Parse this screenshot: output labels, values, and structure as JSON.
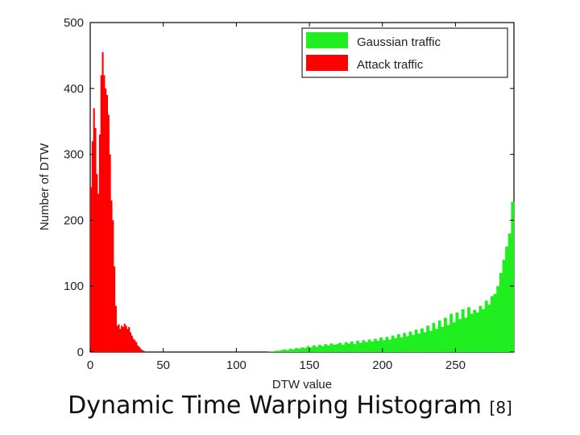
{
  "caption": {
    "title": "Dynamic Time Warping Histogram",
    "ref": "[8]"
  },
  "chart_data": {
    "type": "bar",
    "title": "",
    "xlabel": "DTW value",
    "ylabel": "Number of DTW",
    "xlim": [
      0,
      290
    ],
    "ylim": [
      0,
      500
    ],
    "xticks": [
      0,
      50,
      100,
      150,
      200,
      250
    ],
    "yticks": [
      0,
      100,
      200,
      300,
      400,
      500
    ],
    "legend": {
      "placement": "top-right",
      "entries": [
        "Gaussian traffic",
        "Attack traffic"
      ]
    },
    "series": [
      {
        "name": "Gaussian traffic",
        "color": "#1fef1f",
        "bin_width": 2,
        "x": [
          120,
          122,
          124,
          126,
          128,
          130,
          132,
          134,
          136,
          138,
          140,
          142,
          144,
          146,
          148,
          150,
          152,
          154,
          156,
          158,
          160,
          162,
          164,
          166,
          168,
          170,
          172,
          174,
          176,
          178,
          180,
          182,
          184,
          186,
          188,
          190,
          192,
          194,
          196,
          198,
          200,
          202,
          204,
          206,
          208,
          210,
          212,
          214,
          216,
          218,
          220,
          222,
          224,
          226,
          228,
          230,
          232,
          234,
          236,
          238,
          240,
          242,
          244,
          246,
          248,
          250,
          252,
          254,
          256,
          258,
          260,
          262,
          264,
          266,
          268,
          270,
          272,
          274,
          276,
          278,
          280,
          282,
          284,
          286,
          288
        ],
        "values": [
          0,
          1,
          1,
          2,
          2,
          3,
          4,
          3,
          5,
          4,
          6,
          5,
          7,
          6,
          9,
          7,
          10,
          8,
          11,
          9,
          12,
          10,
          13,
          11,
          12,
          14,
          11,
          15,
          13,
          16,
          12,
          17,
          14,
          18,
          15,
          19,
          16,
          20,
          17,
          22,
          18,
          23,
          19,
          25,
          21,
          27,
          22,
          29,
          24,
          31,
          26,
          34,
          28,
          36,
          30,
          40,
          32,
          44,
          35,
          48,
          38,
          52,
          41,
          58,
          45,
          60,
          50,
          65,
          52,
          68,
          58,
          64,
          60,
          70,
          65,
          78,
          72,
          85,
          88,
          100,
          120,
          140,
          160,
          180,
          228
        ]
      },
      {
        "name": "Attack traffic",
        "color": "#ff0000",
        "bin_width": 1,
        "x": [
          0,
          1,
          2,
          3,
          4,
          5,
          6,
          7,
          8,
          9,
          10,
          11,
          12,
          13,
          14,
          15,
          16,
          17,
          18,
          19,
          20,
          21,
          22,
          23,
          24,
          25,
          26,
          27,
          28,
          29,
          30,
          31,
          32,
          33,
          34,
          35,
          36,
          37
        ],
        "values": [
          250,
          320,
          370,
          340,
          270,
          240,
          330,
          420,
          455,
          420,
          400,
          390,
          360,
          300,
          230,
          200,
          130,
          70,
          40,
          42,
          35,
          40,
          38,
          43,
          40,
          35,
          38,
          30,
          25,
          20,
          18,
          15,
          10,
          8,
          5,
          3,
          2,
          1
        ]
      }
    ]
  }
}
